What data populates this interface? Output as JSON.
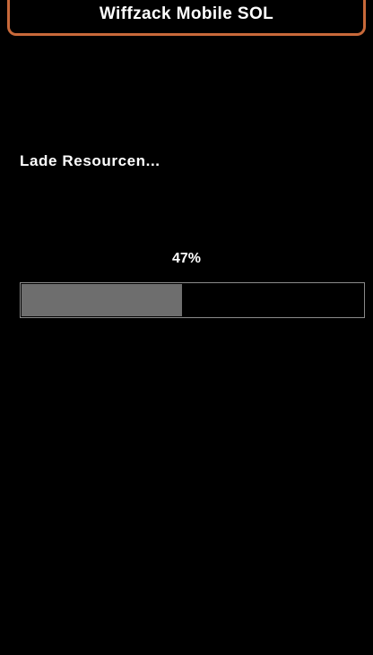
{
  "header": {
    "title": "Wiffzack Mobile SOL",
    "accent_color": "#c8693a"
  },
  "loading": {
    "message": "Lade Resourcen...",
    "percent_text": "47%",
    "progress": 0.47
  }
}
